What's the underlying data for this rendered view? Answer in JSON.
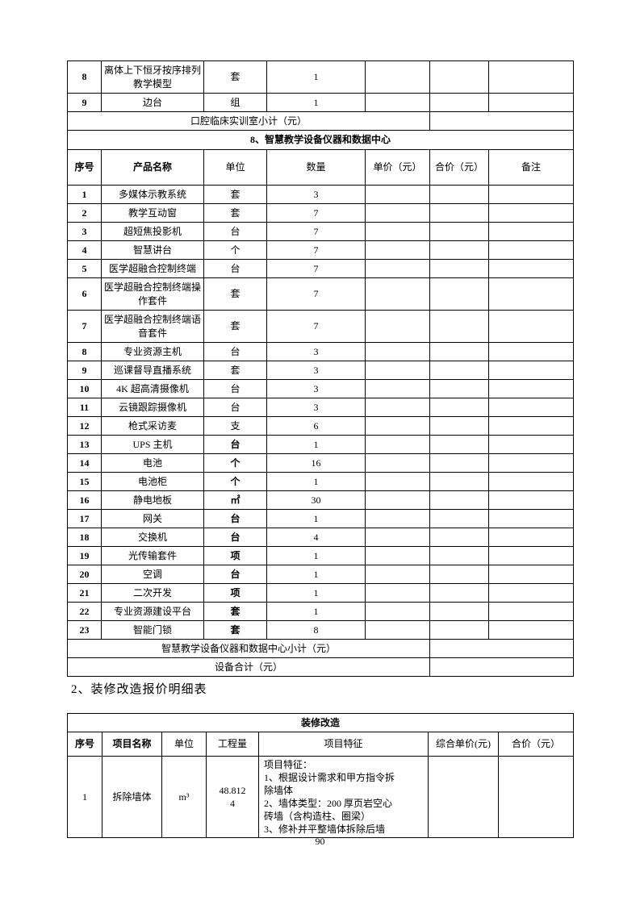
{
  "equipment_table": {
    "carryover_rows": [
      {
        "no": "8",
        "name": "离体上下恒牙按序排列\n教学模型",
        "unit": "套",
        "qty": "1"
      },
      {
        "no": "9",
        "name": "边台",
        "unit": "组",
        "qty": "1"
      }
    ],
    "subtotal_row_label": "口腔临床实训室小计（元）",
    "section_title": "8、智慧教学设备仪器和数据中心",
    "headers": [
      "序号",
      "产品名称",
      "单位",
      "数量",
      "单价（元）",
      "合价（元）",
      "备注"
    ],
    "rows": [
      {
        "no": "1",
        "name": "多媒体示教系统",
        "unit": "套",
        "qty": "3"
      },
      {
        "no": "2",
        "name": "教学互动窗",
        "unit": "套",
        "qty": "7"
      },
      {
        "no": "3",
        "name": "超短焦投影机",
        "unit": "台",
        "qty": "7"
      },
      {
        "no": "4",
        "name": "智慧讲台",
        "unit": "个",
        "qty": "7"
      },
      {
        "no": "5",
        "name": "医学超融合控制终端",
        "unit": "台",
        "qty": "7"
      },
      {
        "no": "6",
        "name": "医学超融合控制终端操\n作套件",
        "unit": "套",
        "qty": "7"
      },
      {
        "no": "7",
        "name": "医学超融合控制终端语\n音套件",
        "unit": "套",
        "qty": "7"
      },
      {
        "no": "8",
        "name": "专业资源主机",
        "unit": "台",
        "qty": "3"
      },
      {
        "no": "9",
        "name": "巡课督导直播系统",
        "unit": "套",
        "qty": "3"
      },
      {
        "no": "10",
        "name": "4K 超高清摄像机",
        "unit": "台",
        "qty": "3"
      },
      {
        "no": "11",
        "name": "云镜跟踪摄像机",
        "unit": "台",
        "qty": "3"
      },
      {
        "no": "12",
        "name": "枪式采访麦",
        "unit": "支",
        "qty": "6"
      },
      {
        "no": "13",
        "name": "UPS 主机",
        "unit": "台",
        "qty": "1"
      },
      {
        "no": "14",
        "name": "电池",
        "unit": "个",
        "qty": "16"
      },
      {
        "no": "15",
        "name": "电池柜",
        "unit": "个",
        "qty": "1"
      },
      {
        "no": "16",
        "name": "静电地板",
        "unit": "㎡",
        "qty": "30"
      },
      {
        "no": "17",
        "name": "网关",
        "unit": "台",
        "qty": "1"
      },
      {
        "no": "18",
        "name": "交换机",
        "unit": "台",
        "qty": "4"
      },
      {
        "no": "19",
        "name": "光传输套件",
        "unit": "项",
        "qty": "1"
      },
      {
        "no": "20",
        "name": "空调",
        "unit": "台",
        "qty": "1"
      },
      {
        "no": "21",
        "name": "二次开发",
        "unit": "项",
        "qty": "1"
      },
      {
        "no": "22",
        "name": "专业资源建设平台",
        "unit": "套",
        "qty": "1"
      },
      {
        "no": "23",
        "name": "智能门锁",
        "unit": "套",
        "qty": "8"
      }
    ],
    "section_subtotal_label": "智慧教学设备仪器和数据中心小计（元）",
    "total_label": "设备合计（元）"
  },
  "renovation": {
    "heading": "2、装修改造报价明细表",
    "table_title": "装修改造",
    "headers": [
      "序号",
      "项目名称",
      "单位",
      "工程量",
      "项目特征",
      "综合单价(元)",
      "合价（元）"
    ],
    "rows": [
      {
        "no": "1",
        "name": "拆除墙体",
        "unit": "m³",
        "quantity": "48.812\n4",
        "features": "项目特征：\n1、根据设计需求和甲方指令拆\n除墙体\n2、墙体类型：200 厚页岩空心\n砖墙（含构造柱、圈梁）\n3、修补并平整墙体拆除后墙"
      }
    ]
  },
  "page": {
    "number": "90"
  }
}
